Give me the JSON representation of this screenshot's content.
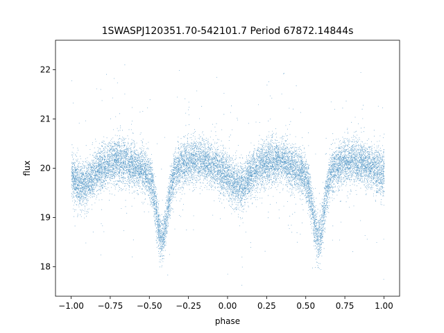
{
  "chart_data": {
    "type": "scatter",
    "title": "1SWASPJ120351.70-542101.7 Period 67872.14844s",
    "xlabel": "phase",
    "ylabel": "flux",
    "xlim": [
      -1.1,
      1.1
    ],
    "ylim": [
      17.4,
      22.6
    ],
    "xticks": [
      -1.0,
      -0.75,
      -0.5,
      -0.25,
      0.0,
      0.25,
      0.5,
      0.75,
      1.0
    ],
    "xtick_labels": [
      "−1.00",
      "−0.75",
      "−0.50",
      "−0.25",
      "0.00",
      "0.25",
      "0.50",
      "0.75",
      "1.00"
    ],
    "yticks": [
      18,
      19,
      20,
      21,
      22
    ],
    "ytick_labels": [
      "18",
      "19",
      "20",
      "21",
      "22"
    ],
    "grid": false,
    "marker_color": "#1f77b4",
    "light_curve": {
      "period_phase_range": [
        -1.0,
        1.0
      ],
      "baseline_flux": 20.0,
      "max_flux_phases": [
        -0.7,
        -0.2,
        0.3,
        0.8
      ],
      "max_flux": 20.15,
      "primary_min_phases": [
        -0.42,
        0.58
      ],
      "primary_min_flux": 18.7,
      "secondary_min_phases": [
        -0.92,
        0.08
      ],
      "secondary_min_flux": 19.65,
      "scatter_sd": 0.22,
      "n_points": 16000,
      "outlier_range": [
        17.6,
        22.3
      ]
    }
  }
}
